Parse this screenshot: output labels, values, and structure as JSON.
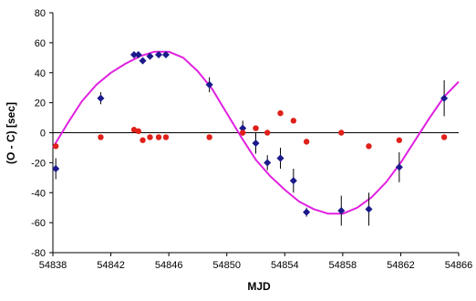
{
  "chart_data": {
    "type": "scatter",
    "xlabel": "MJD",
    "ylabel": "(O - C) [sec]",
    "xlim": [
      54838,
      54866
    ],
    "ylim": [
      -80,
      80
    ],
    "x_ticks": [
      54838,
      54842,
      54846,
      54850,
      54854,
      54858,
      54862,
      54866
    ],
    "y_ticks": [
      -80,
      -60,
      -40,
      -20,
      0,
      20,
      40,
      60,
      80
    ],
    "zero_line": true,
    "grid": false,
    "legend": "none",
    "series": [
      {
        "marker": "diamond",
        "color": "#1a1a8c",
        "error_bars": true,
        "points": [
          {
            "x": 54838.2,
            "y": -24,
            "err": 7
          },
          {
            "x": 54841.3,
            "y": 23,
            "err": 4
          },
          {
            "x": 54843.6,
            "y": 52,
            "err": 2
          },
          {
            "x": 54843.9,
            "y": 52,
            "err": 2
          },
          {
            "x": 54844.2,
            "y": 48,
            "err": 2
          },
          {
            "x": 54844.7,
            "y": 51,
            "err": 2
          },
          {
            "x": 54845.3,
            "y": 52,
            "err": 2
          },
          {
            "x": 54845.8,
            "y": 52,
            "err": 2
          },
          {
            "x": 54848.8,
            "y": 32,
            "err": 5
          },
          {
            "x": 54851.1,
            "y": 3,
            "err": 5
          },
          {
            "x": 54852.0,
            "y": -7,
            "err": 7
          },
          {
            "x": 54852.8,
            "y": -20,
            "err": 5
          },
          {
            "x": 54853.7,
            "y": -17,
            "err": 7
          },
          {
            "x": 54854.6,
            "y": -32,
            "err": 8
          },
          {
            "x": 54855.5,
            "y": -53,
            "err": 3
          },
          {
            "x": 54857.9,
            "y": -52,
            "err": 10
          },
          {
            "x": 54859.8,
            "y": -51,
            "err": 11
          },
          {
            "x": 54861.9,
            "y": -23,
            "err": 10
          },
          {
            "x": 54865.0,
            "y": 23,
            "err": 12
          }
        ]
      },
      {
        "marker": "circle",
        "color": "#e0201a",
        "error_bars": false,
        "points": [
          {
            "x": 54838.2,
            "y": -9
          },
          {
            "x": 54841.3,
            "y": -3
          },
          {
            "x": 54843.6,
            "y": 2
          },
          {
            "x": 54843.9,
            "y": 1
          },
          {
            "x": 54844.2,
            "y": -5
          },
          {
            "x": 54844.7,
            "y": -3
          },
          {
            "x": 54845.3,
            "y": -3
          },
          {
            "x": 54845.8,
            "y": -3
          },
          {
            "x": 54848.8,
            "y": -3
          },
          {
            "x": 54851.1,
            "y": 0
          },
          {
            "x": 54852.0,
            "y": 3
          },
          {
            "x": 54852.8,
            "y": 0
          },
          {
            "x": 54853.7,
            "y": 13
          },
          {
            "x": 54854.6,
            "y": 8
          },
          {
            "x": 54855.5,
            "y": -6
          },
          {
            "x": 54857.9,
            "y": 0
          },
          {
            "x": 54859.8,
            "y": -9
          },
          {
            "x": 54861.9,
            "y": -5
          },
          {
            "x": 54865.0,
            "y": -3
          }
        ]
      },
      {
        "marker": "none",
        "line": true,
        "color": "#e020e0",
        "points": [
          {
            "x": 54838,
            "y": -10
          },
          {
            "x": 54839,
            "y": 6
          },
          {
            "x": 54840,
            "y": 21
          },
          {
            "x": 54841,
            "y": 32
          },
          {
            "x": 54842,
            "y": 40
          },
          {
            "x": 54843,
            "y": 46
          },
          {
            "x": 54844,
            "y": 51
          },
          {
            "x": 54845,
            "y": 54
          },
          {
            "x": 54846,
            "y": 54
          },
          {
            "x": 54847,
            "y": 50
          },
          {
            "x": 54848,
            "y": 41
          },
          {
            "x": 54849,
            "y": 29
          },
          {
            "x": 54850,
            "y": 13
          },
          {
            "x": 54851,
            "y": -3
          },
          {
            "x": 54852,
            "y": -18
          },
          {
            "x": 54853,
            "y": -29
          },
          {
            "x": 54854,
            "y": -38
          },
          {
            "x": 54855,
            "y": -46
          },
          {
            "x": 54856,
            "y": -51
          },
          {
            "x": 54857,
            "y": -54
          },
          {
            "x": 54858,
            "y": -54
          },
          {
            "x": 54859,
            "y": -50
          },
          {
            "x": 54860,
            "y": -43
          },
          {
            "x": 54861,
            "y": -33
          },
          {
            "x": 54862,
            "y": -20
          },
          {
            "x": 54863,
            "y": -5
          },
          {
            "x": 54864,
            "y": 10
          },
          {
            "x": 54865,
            "y": 24
          },
          {
            "x": 54866,
            "y": 34
          }
        ]
      }
    ]
  }
}
